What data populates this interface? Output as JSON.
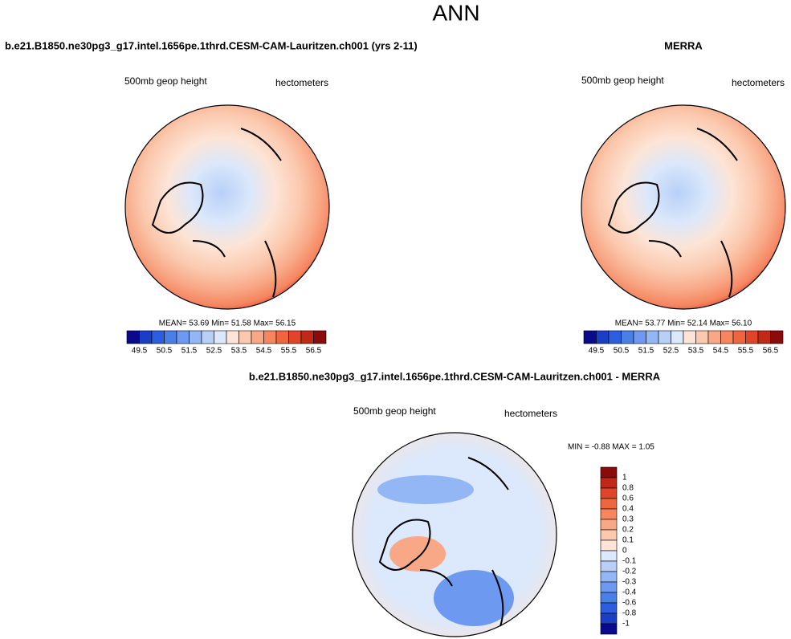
{
  "title": "ANN",
  "panels": [
    {
      "title": "b.e21.B1850.ne30pg3_g17.intel.1656pe.1thrd.CESM-CAM-Lauritzen.ch001 (yrs 2-11)",
      "field": "500mb geop height",
      "units": "hectometers",
      "stats": "MEAN=  53.69  Min=  51.58  Max=  56.15",
      "colorbar_labels": [
        "49.5",
        "50.5",
        "51.5",
        "52.5",
        "53.5",
        "54.5",
        "55.5",
        "56.5"
      ]
    },
    {
      "title": "MERRA",
      "field": "500mb geop height",
      "units": "hectometers",
      "stats": "MEAN=  53.77  Min=  52.14  Max=  56.10",
      "colorbar_labels": [
        "49.5",
        "50.5",
        "51.5",
        "52.5",
        "53.5",
        "54.5",
        "55.5",
        "56.5"
      ]
    }
  ],
  "difference": {
    "title": "b.e21.B1850.ne30pg3_g17.intel.1656pe.1thrd.CESM-CAM-Lauritzen.ch001 - MERRA",
    "field": "500mb geop height",
    "units": "hectometers",
    "stats": "MIN =  -0.88 MAX =   1.05",
    "colorbar_labels": [
      "1",
      "0.8",
      "0.6",
      "0.4",
      "0.3",
      "0.2",
      "0.1",
      "0",
      "-0.1",
      "-0.2",
      "-0.3",
      "-0.4",
      "-0.6",
      "-0.8",
      "-1"
    ]
  }
}
